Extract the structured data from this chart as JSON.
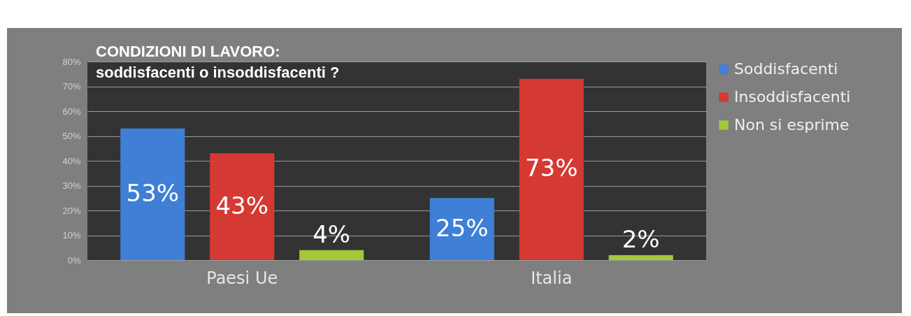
{
  "chart_data": {
    "type": "bar",
    "title": "CONDIZIONI DI LAVORO:",
    "subtitle": "soddisfacenti o insoddisfacenti ?",
    "categories": [
      "Paesi Ue",
      "Italia"
    ],
    "series": [
      {
        "name": "Soddisfacenti",
        "color": "#3f7fd6",
        "values": [
          53,
          25
        ],
        "value_labels": [
          "53%",
          "25%"
        ]
      },
      {
        "name": "Insoddisfacenti",
        "color": "#d43a33",
        "values": [
          43,
          73
        ],
        "value_labels": [
          "43%",
          "73%"
        ]
      },
      {
        "name": "Non si esprime",
        "color": "#a4c83a",
        "values": [
          4,
          2
        ],
        "value_labels": [
          "4%",
          "2%"
        ]
      }
    ],
    "ylim": [
      0,
      80
    ],
    "yticks": [
      {
        "value": 0,
        "label": "0%"
      },
      {
        "value": 10,
        "label": "10%"
      },
      {
        "value": 20,
        "label": "20%"
      },
      {
        "value": 30,
        "label": "30%"
      },
      {
        "value": 40,
        "label": "40%"
      },
      {
        "value": 50,
        "label": "50%"
      },
      {
        "value": 60,
        "label": "60%"
      },
      {
        "value": 70,
        "label": "70%"
      },
      {
        "value": 80,
        "label": "80%"
      }
    ],
    "grid": "y",
    "legend": "right"
  }
}
